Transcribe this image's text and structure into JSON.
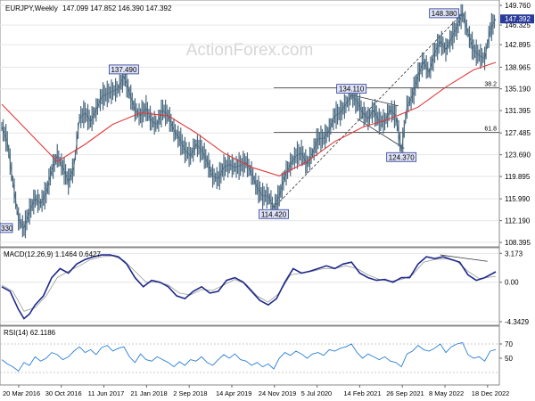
{
  "chart_data": {
    "type": "line",
    "symbol": "EURJPY,Weekly",
    "ohlc_readout": "147.099 147.852 146.390 147.392",
    "watermark": "ActionForex.com",
    "x_ticks": [
      "20 Mar 2016",
      "30 Oct 2016",
      "11 Jun 2017",
      "21 Jan 2018",
      "2 Sep 2018",
      "14 Apr 2019",
      "24 Nov 2019",
      "5 Jul 2020",
      "14 Feb 2021",
      "26 Sep 2021",
      "8 May 2022",
      "18 Dec 2022"
    ],
    "price_panel": {
      "y_ticks": [
        "149.760",
        "146.325",
        "142.895",
        "138.965",
        "135.190",
        "131.395",
        "127.485",
        "123.690",
        "119.895",
        "115.990",
        "112.190",
        "108.395"
      ],
      "ylim": [
        108.395,
        149.76
      ],
      "current_price": "147.392",
      "price_series": [
        [
          0,
          128.6
        ],
        [
          2,
          126.0
        ],
        [
          4,
          119.0
        ],
        [
          6,
          112.5
        ],
        [
          8,
          110.8
        ],
        [
          10,
          113.8
        ],
        [
          12,
          116.0
        ],
        [
          14,
          115.2
        ],
        [
          16,
          117.0
        ],
        [
          18,
          121.0
        ],
        [
          20,
          123.5
        ],
        [
          22,
          121.5
        ],
        [
          24,
          119.0
        ],
        [
          26,
          121.5
        ],
        [
          28,
          130.0
        ],
        [
          30,
          131.0
        ],
        [
          32,
          129.5
        ],
        [
          34,
          131.5
        ],
        [
          36,
          133.8
        ],
        [
          38,
          134.3
        ],
        [
          40,
          134.8
        ],
        [
          42,
          135.2
        ],
        [
          44,
          137.49
        ],
        [
          46,
          134.5
        ],
        [
          48,
          131.5
        ],
        [
          50,
          130.5
        ],
        [
          52,
          131.8
        ],
        [
          54,
          129.5
        ],
        [
          56,
          129.0
        ],
        [
          58,
          131.5
        ],
        [
          60,
          130.5
        ],
        [
          62,
          128.0
        ],
        [
          64,
          126.5
        ],
        [
          66,
          124.5
        ],
        [
          68,
          123.5
        ],
        [
          70,
          125.5
        ],
        [
          72,
          124.5
        ],
        [
          74,
          122.5
        ],
        [
          76,
          120.0
        ],
        [
          78,
          119.5
        ],
        [
          80,
          121.5
        ],
        [
          82,
          122.0
        ],
        [
          84,
          121.5
        ],
        [
          86,
          121.8
        ],
        [
          88,
          122.4
        ],
        [
          90,
          120.5
        ],
        [
          92,
          118.0
        ],
        [
          94,
          116.5
        ],
        [
          96,
          116.5
        ],
        [
          98,
          114.42
        ],
        [
          100,
          116.5
        ],
        [
          102,
          120.0
        ],
        [
          104,
          122.0
        ],
        [
          106,
          123.5
        ],
        [
          108,
          124.0
        ],
        [
          110,
          122.0
        ],
        [
          112,
          124.0
        ],
        [
          114,
          126.5
        ],
        [
          116,
          126.5
        ],
        [
          118,
          128.0
        ],
        [
          120,
          130.5
        ],
        [
          122,
          131.0
        ],
        [
          124,
          132.5
        ],
        [
          126,
          134.11
        ],
        [
          128,
          133.0
        ],
        [
          130,
          131.0
        ],
        [
          132,
          130.0
        ],
        [
          134,
          131.5
        ],
        [
          136,
          129.5
        ],
        [
          138,
          129.5
        ],
        [
          140,
          131.5
        ],
        [
          142,
          130.5
        ],
        [
          144,
          124.37
        ],
        [
          146,
          132.0
        ],
        [
          148,
          134.0
        ],
        [
          150,
          137.5
        ],
        [
          152,
          140.0
        ],
        [
          154,
          138.0
        ],
        [
          156,
          141.5
        ],
        [
          158,
          143.5
        ],
        [
          160,
          142.0
        ],
        [
          162,
          144.0
        ],
        [
          164,
          146.0
        ],
        [
          166,
          148.38
        ],
        [
          168,
          145.0
        ],
        [
          170,
          142.0
        ],
        [
          172,
          141.0
        ],
        [
          174,
          140.5
        ],
        [
          176,
          145.5
        ],
        [
          178,
          147.392
        ]
      ],
      "ma_series": [
        [
          0,
          132.5
        ],
        [
          10,
          127.5
        ],
        [
          20,
          122.5
        ],
        [
          30,
          125.5
        ],
        [
          40,
          129.0
        ],
        [
          50,
          131.0
        ],
        [
          60,
          130.5
        ],
        [
          70,
          127.5
        ],
        [
          80,
          124.0
        ],
        [
          90,
          121.5
        ],
        [
          100,
          120.0
        ],
        [
          110,
          122.5
        ],
        [
          120,
          126.0
        ],
        [
          130,
          128.5
        ],
        [
          140,
          130.0
        ],
        [
          150,
          132.0
        ],
        [
          160,
          135.5
        ],
        [
          170,
          138.5
        ],
        [
          178,
          139.8
        ]
      ],
      "labels": [
        "137.490",
        "114.420",
        "134.110",
        "124.370",
        "148.380"
      ],
      "label_left_cut": "330",
      "fib_levels": [
        {
          "value": 135.4,
          "label": "38.2"
        },
        {
          "value": 127.6,
          "label": "61.8"
        }
      ],
      "fib_lines": [
        {
          "from": [
            98,
            114.42
          ],
          "to": [
            166,
            148.38
          ]
        },
        {
          "from": [
            126,
            134.11
          ],
          "to": [
            143,
            132.2
          ]
        },
        {
          "from": [
            128,
            130.0
          ],
          "to": [
            145,
            124.8
          ]
        }
      ]
    },
    "macd_panel": {
      "label": "MACD(12,26,9) 1.1464 0.6427",
      "y_ticks": [
        "3.173",
        "0.00",
        "-4.3429"
      ],
      "ylim": [
        -4.3429,
        3.4
      ],
      "macd": [
        [
          0,
          -0.5
        ],
        [
          3,
          -1.0
        ],
        [
          6,
          -3.0
        ],
        [
          8,
          -4.0
        ],
        [
          10,
          -3.5
        ],
        [
          12,
          -2.5
        ],
        [
          15,
          -1.5
        ],
        [
          18,
          0.5
        ],
        [
          21,
          1.5
        ],
        [
          24,
          1.0
        ],
        [
          27,
          2.0
        ],
        [
          30,
          2.5
        ],
        [
          33,
          2.8
        ],
        [
          36,
          3.0
        ],
        [
          39,
          3.0
        ],
        [
          42,
          2.8
        ],
        [
          45,
          2.0
        ],
        [
          48,
          0.5
        ],
        [
          51,
          -0.5
        ],
        [
          54,
          0.2
        ],
        [
          57,
          0.0
        ],
        [
          60,
          -0.5
        ],
        [
          63,
          -1.5
        ],
        [
          66,
          -1.8
        ],
        [
          69,
          -1.0
        ],
        [
          72,
          -0.5
        ],
        [
          75,
          -1.2
        ],
        [
          78,
          -1.0
        ],
        [
          81,
          0.2
        ],
        [
          84,
          0.5
        ],
        [
          87,
          0.0
        ],
        [
          90,
          -1.0
        ],
        [
          93,
          -2.0
        ],
        [
          96,
          -2.5
        ],
        [
          99,
          -1.8
        ],
        [
          102,
          0.0
        ],
        [
          105,
          1.5
        ],
        [
          108,
          1.0
        ],
        [
          111,
          1.2
        ],
        [
          114,
          1.5
        ],
        [
          117,
          1.8
        ],
        [
          120,
          1.5
        ],
        [
          123,
          2.0
        ],
        [
          126,
          2.2
        ],
        [
          129,
          1.0
        ],
        [
          132,
          0.5
        ],
        [
          135,
          0.2
        ],
        [
          138,
          0.3
        ],
        [
          141,
          0.0
        ],
        [
          144,
          0.5
        ],
        [
          147,
          0.5
        ],
        [
          150,
          2.0
        ],
        [
          153,
          2.8
        ],
        [
          156,
          2.6
        ],
        [
          159,
          2.8
        ],
        [
          162,
          2.5
        ],
        [
          165,
          2.2
        ],
        [
          168,
          0.8
        ],
        [
          171,
          0.2
        ],
        [
          174,
          0.5
        ],
        [
          178,
          1.1464
        ]
      ],
      "signal": [
        [
          0,
          -0.3
        ],
        [
          4,
          -1.0
        ],
        [
          8,
          -3.2
        ],
        [
          12,
          -2.8
        ],
        [
          16,
          -1.5
        ],
        [
          20,
          0.5
        ],
        [
          24,
          1.2
        ],
        [
          28,
          1.8
        ],
        [
          32,
          2.5
        ],
        [
          36,
          2.8
        ],
        [
          40,
          2.9
        ],
        [
          44,
          2.4
        ],
        [
          48,
          1.2
        ],
        [
          52,
          0.0
        ],
        [
          56,
          0.0
        ],
        [
          60,
          -0.3
        ],
        [
          64,
          -1.2
        ],
        [
          68,
          -1.4
        ],
        [
          72,
          -0.8
        ],
        [
          76,
          -0.9
        ],
        [
          80,
          -0.3
        ],
        [
          84,
          0.3
        ],
        [
          88,
          -0.2
        ],
        [
          92,
          -1.5
        ],
        [
          96,
          -2.2
        ],
        [
          100,
          -1.2
        ],
        [
          104,
          0.8
        ],
        [
          108,
          1.0
        ],
        [
          112,
          1.2
        ],
        [
          116,
          1.5
        ],
        [
          120,
          1.5
        ],
        [
          124,
          1.8
        ],
        [
          128,
          1.5
        ],
        [
          132,
          0.8
        ],
        [
          136,
          0.3
        ],
        [
          140,
          0.1
        ],
        [
          144,
          0.3
        ],
        [
          148,
          0.8
        ],
        [
          152,
          2.2
        ],
        [
          156,
          2.5
        ],
        [
          160,
          2.6
        ],
        [
          164,
          2.3
        ],
        [
          168,
          1.2
        ],
        [
          172,
          0.4
        ],
        [
          178,
          0.6427
        ]
      ],
      "divergence_line": {
        "from": [
          158,
          3.0
        ],
        "to": [
          175,
          2.3
        ]
      }
    },
    "rsi_panel": {
      "label": "RSI(14) 62.1186",
      "y_ticks": [
        "70",
        "50"
      ],
      "ylim": [
        15,
        90
      ],
      "levels": [
        70,
        30
      ],
      "rsi": [
        [
          0,
          48
        ],
        [
          2,
          42
        ],
        [
          4,
          38
        ],
        [
          6,
          32
        ],
        [
          8,
          44
        ],
        [
          10,
          40
        ],
        [
          12,
          52
        ],
        [
          14,
          46
        ],
        [
          16,
          50
        ],
        [
          18,
          58
        ],
        [
          20,
          55
        ],
        [
          22,
          48
        ],
        [
          24,
          52
        ],
        [
          26,
          60
        ],
        [
          28,
          66
        ],
        [
          30,
          58
        ],
        [
          32,
          62
        ],
        [
          34,
          55
        ],
        [
          36,
          65
        ],
        [
          38,
          68
        ],
        [
          40,
          60
        ],
        [
          42,
          64
        ],
        [
          44,
          66
        ],
        [
          46,
          52
        ],
        [
          48,
          44
        ],
        [
          50,
          56
        ],
        [
          52,
          48
        ],
        [
          54,
          46
        ],
        [
          56,
          52
        ],
        [
          58,
          48
        ],
        [
          60,
          44
        ],
        [
          62,
          38
        ],
        [
          64,
          45
        ],
        [
          66,
          40
        ],
        [
          68,
          48
        ],
        [
          70,
          46
        ],
        [
          72,
          52
        ],
        [
          74,
          44
        ],
        [
          76,
          40
        ],
        [
          78,
          48
        ],
        [
          80,
          55
        ],
        [
          82,
          50
        ],
        [
          84,
          56
        ],
        [
          86,
          48
        ],
        [
          88,
          46
        ],
        [
          90,
          40
        ],
        [
          92,
          44
        ],
        [
          94,
          38
        ],
        [
          96,
          42
        ],
        [
          98,
          35
        ],
        [
          100,
          50
        ],
        [
          102,
          58
        ],
        [
          104,
          54
        ],
        [
          106,
          60
        ],
        [
          108,
          56
        ],
        [
          110,
          50
        ],
        [
          112,
          56
        ],
        [
          114,
          58
        ],
        [
          116,
          54
        ],
        [
          118,
          62
        ],
        [
          120,
          60
        ],
        [
          122,
          64
        ],
        [
          124,
          66
        ],
        [
          126,
          70
        ],
        [
          128,
          58
        ],
        [
          130,
          50
        ],
        [
          132,
          56
        ],
        [
          134,
          52
        ],
        [
          136,
          48
        ],
        [
          138,
          52
        ],
        [
          140,
          46
        ],
        [
          142,
          44
        ],
        [
          144,
          38
        ],
        [
          146,
          56
        ],
        [
          148,
          60
        ],
        [
          150,
          68
        ],
        [
          152,
          62
        ],
        [
          154,
          60
        ],
        [
          156,
          64
        ],
        [
          158,
          70
        ],
        [
          160,
          58
        ],
        [
          162,
          66
        ],
        [
          164,
          70
        ],
        [
          166,
          72
        ],
        [
          168,
          55
        ],
        [
          170,
          50
        ],
        [
          172,
          52
        ],
        [
          174,
          46
        ],
        [
          176,
          60
        ],
        [
          178,
          62.1186
        ]
      ]
    },
    "colors": {
      "price": "#4b6a80",
      "ma": "#e03a3a",
      "macd": "#1e2a8a",
      "signal": "#999999",
      "rsi": "#2a7fd4",
      "label_fill": "#dfe3f5",
      "label_border": "#2a3a9a",
      "current_price_bg": "#2a3a9a"
    }
  }
}
